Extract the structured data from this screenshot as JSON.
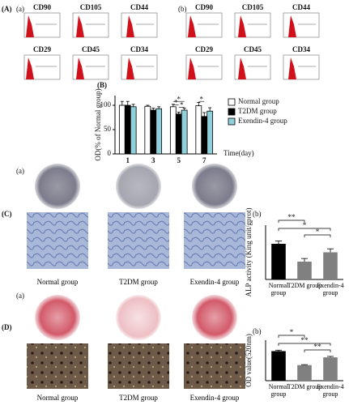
{
  "figure": {
    "A": {
      "label": "(A)",
      "a": "(a)",
      "b": "(b)",
      "markers": [
        "CD90",
        "CD105",
        "CD44",
        "CD29",
        "CD45",
        "CD34"
      ]
    },
    "B": {
      "label": "(B)"
    },
    "C": {
      "label": "(C)",
      "a": "(a)",
      "b": "(b)",
      "groups": [
        "Normal group",
        "T2DM group",
        "Exendin-4 group"
      ]
    },
    "D": {
      "label": "(D)",
      "a": "(a)",
      "b": "(b)",
      "groups": [
        "Normal group",
        "T2DM group",
        "Exendin-4 group"
      ]
    }
  },
  "chart_data": [
    {
      "type": "grouped-bar",
      "ylabel": "OD(% of Normal group)",
      "xlabel": "Time(day)",
      "categories": [
        "1",
        "3",
        "5",
        "7"
      ],
      "series": [
        {
          "name": "Normal group",
          "color": "#ffffff",
          "values": [
            100,
            98,
            97,
            99
          ],
          "errors": [
            8,
            2,
            5,
            7
          ]
        },
        {
          "name": "T2DM group",
          "color": "#000000",
          "values": [
            100,
            90,
            82,
            77
          ],
          "errors": [
            8,
            4,
            4,
            8
          ]
        },
        {
          "name": "Exendin-4 group",
          "color": "#8fd0dc",
          "values": [
            97,
            93,
            90,
            88
          ],
          "errors": [
            5,
            4,
            4,
            7
          ]
        }
      ],
      "ylim": [
        0,
        120
      ],
      "yticks": [
        0,
        50,
        100
      ],
      "significance": [
        "*",
        "*",
        "*",
        "*"
      ]
    },
    {
      "type": "bar",
      "ylabel": "ALP activity (King unit/gprot)",
      "categories": [
        "Normal group",
        "T2DM group",
        "Exendin-4 group"
      ],
      "values": [
        9.2,
        4.6,
        7.0
      ],
      "errors": [
        0.7,
        0.8,
        0.9
      ],
      "colors": [
        "#000000",
        "#808080",
        "#808080"
      ],
      "ylim": [
        0,
        14
      ],
      "significance": [
        "**",
        "*",
        "*"
      ]
    },
    {
      "type": "bar",
      "ylabel": "OD value(520nm)",
      "categories": [
        "Normal group",
        "T2DM group",
        "Exendin-4 group"
      ],
      "values": [
        1.9,
        1.0,
        1.5
      ],
      "errors": [
        0.06,
        0.03,
        0.06
      ],
      "colors": [
        "#000000",
        "#808080",
        "#808080"
      ],
      "ylim": [
        0,
        2.6
      ],
      "significance": [
        "*",
        "**",
        "**"
      ]
    }
  ]
}
